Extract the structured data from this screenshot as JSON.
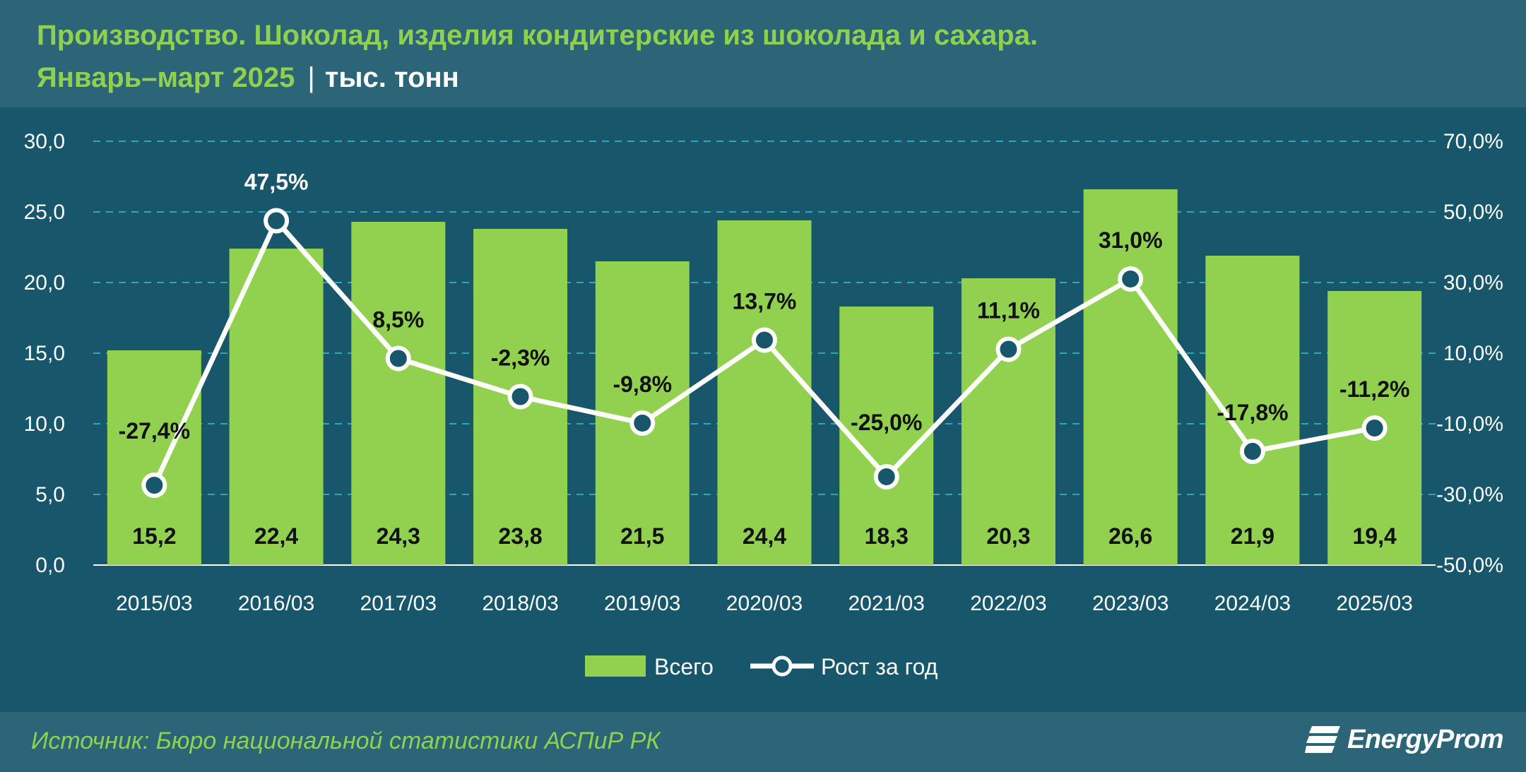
{
  "header": {
    "title_line1": "Производство. Шоколад, изделия кондитерские из шоколада и сахара.",
    "title_line2": "Январь–март 2025",
    "unit": "тыс. тонн"
  },
  "footer": {
    "source": "Источник: Бюро национальной статистики АСПиР РК",
    "logo": "EnergyProm"
  },
  "colors": {
    "background": "#17566b",
    "header": "#2c6478",
    "bar": "#92d050",
    "line": "#ffffff",
    "marker_fill": "#17566b",
    "title": "#8fd14f"
  },
  "chart_data": {
    "type": "bar",
    "categories": [
      "2015/03",
      "2016/03",
      "2017/03",
      "2018/03",
      "2019/03",
      "2020/03",
      "2021/03",
      "2022/03",
      "2023/03",
      "2024/03",
      "2025/03"
    ],
    "series": [
      {
        "name": "Всего",
        "type": "bar",
        "axis": "left",
        "values": [
          15.2,
          22.4,
          24.3,
          23.8,
          21.5,
          24.4,
          18.3,
          20.3,
          26.6,
          21.9,
          19.4
        ]
      },
      {
        "name": "Рост за год",
        "type": "line",
        "axis": "right",
        "values": [
          -27.4,
          47.5,
          8.5,
          -2.3,
          -9.8,
          13.7,
          -25.0,
          11.1,
          31.0,
          -17.8,
          -11.2
        ]
      }
    ],
    "bar_labels": [
      "15,2",
      "22,4",
      "24,3",
      "23,8",
      "21,5",
      "24,4",
      "18,3",
      "20,3",
      "26,6",
      "21,9",
      "19,4"
    ],
    "line_labels": [
      "-27,4%",
      "47,5%",
      "8,5%",
      "-2,3%",
      "-9,8%",
      "13,7%",
      "-25,0%",
      "11,1%",
      "31,0%",
      "-17,8%",
      "-11,2%"
    ],
    "y_left": {
      "min": 0,
      "max": 30,
      "ticks": [
        "0,0",
        "5,0",
        "10,0",
        "15,0",
        "20,0",
        "25,0",
        "30,0"
      ]
    },
    "y_right": {
      "min": -50,
      "max": 70,
      "ticks": [
        "-50,0%",
        "-30,0%",
        "-10,0%",
        "10,0%",
        "30,0%",
        "50,0%",
        "70,0%"
      ]
    },
    "grid": true,
    "legend": "bottom-center"
  }
}
